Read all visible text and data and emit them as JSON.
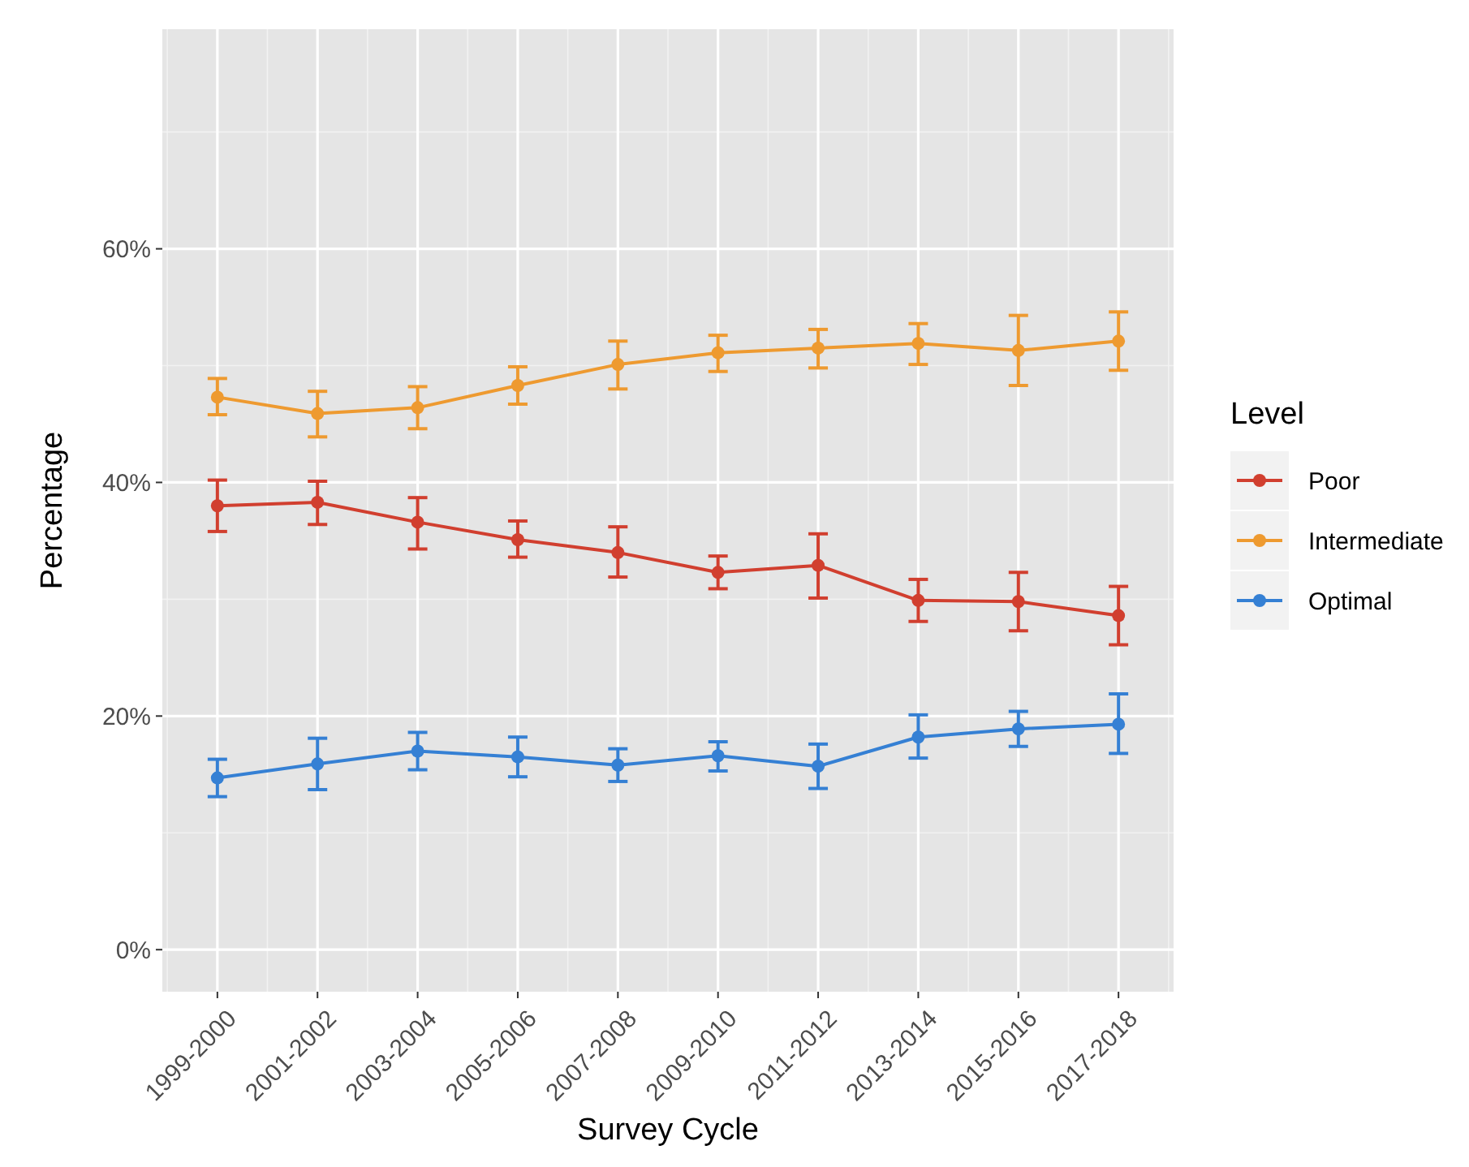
{
  "chart_data": {
    "type": "line",
    "xlabel": "Survey Cycle",
    "ylabel": "Percentage",
    "legend_title": "Level",
    "legend": "right",
    "grid": true,
    "marker": "circle",
    "categories": [
      "1999-2000",
      "2001-2002",
      "2003-2004",
      "2005-2006",
      "2007-2008",
      "2009-2010",
      "2011-2012",
      "2013-2014",
      "2015-2016",
      "2017-2018"
    ],
    "ylim": [
      -3.6,
      78.8
    ],
    "yticks": [
      {
        "value": 0,
        "label": "0%"
      },
      {
        "value": 20,
        "label": "20%"
      },
      {
        "value": 40,
        "label": "40%"
      },
      {
        "value": 60,
        "label": "60%"
      }
    ],
    "series": [
      {
        "name": "Poor",
        "color": "#d13f2f",
        "values": [
          38.0,
          38.3,
          36.6,
          35.1,
          34.0,
          32.3,
          32.9,
          29.9,
          29.8,
          28.6
        ],
        "errors": [
          [
            35.8,
            40.2
          ],
          [
            36.4,
            40.1
          ],
          [
            34.3,
            38.7
          ],
          [
            33.6,
            36.7
          ],
          [
            31.9,
            36.2
          ],
          [
            30.9,
            33.7
          ],
          [
            30.1,
            35.6
          ],
          [
            28.1,
            31.7
          ],
          [
            27.3,
            32.3
          ],
          [
            26.1,
            31.1
          ]
        ]
      },
      {
        "name": "Intermediate",
        "color": "#ee9a30",
        "values": [
          47.3,
          45.9,
          46.4,
          48.3,
          50.1,
          51.1,
          51.5,
          51.9,
          51.3,
          52.1
        ],
        "errors": [
          [
            45.8,
            48.9
          ],
          [
            43.9,
            47.8
          ],
          [
            44.6,
            48.2
          ],
          [
            46.7,
            49.9
          ],
          [
            48.0,
            52.1
          ],
          [
            49.5,
            52.6
          ],
          [
            49.8,
            53.1
          ],
          [
            50.1,
            53.6
          ],
          [
            48.3,
            54.3
          ],
          [
            49.6,
            54.6
          ]
        ]
      },
      {
        "name": "Optimal",
        "color": "#3580d4",
        "values": [
          14.7,
          15.9,
          17.0,
          16.5,
          15.8,
          16.6,
          15.7,
          18.2,
          18.9,
          19.3
        ],
        "errors": [
          [
            13.1,
            16.3
          ],
          [
            13.7,
            18.1
          ],
          [
            15.4,
            18.6
          ],
          [
            14.8,
            18.2
          ],
          [
            14.4,
            17.2
          ],
          [
            15.3,
            17.8
          ],
          [
            13.8,
            17.6
          ],
          [
            16.4,
            20.1
          ],
          [
            17.4,
            20.4
          ],
          [
            16.8,
            21.9
          ]
        ]
      }
    ]
  }
}
